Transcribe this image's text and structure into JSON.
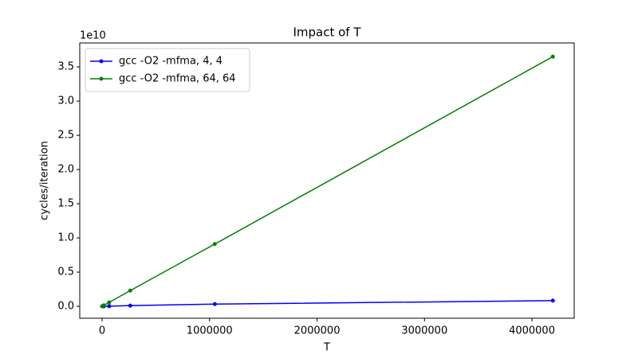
{
  "chart_data": {
    "type": "line",
    "title": "Impact of T",
    "x_label": "T",
    "y_label": "cycles/iteration",
    "y_offset_label": "1e10",
    "x": [
      1024,
      4096,
      16384,
      65536,
      262144,
      1048576,
      4194304
    ],
    "series": [
      {
        "name": "gcc -O2 -mfma, 4, 4",
        "color": "#0000ff",
        "values": [
          400000,
          1600000,
          6400000,
          25000000,
          100000000,
          320000000,
          830000000
        ]
      },
      {
        "name": "gcc -O2 -mfma, 64, 64",
        "color": "#008000",
        "values": [
          9000000,
          36000000,
          143000000,
          570000000,
          2300000000,
          9100000000,
          36500000000
        ]
      }
    ],
    "xlim": [
      -207792,
      4393000
    ],
    "ylim": [
      -1740000000,
      38500000000
    ],
    "xticks": [
      0,
      1000000,
      2000000,
      3000000,
      4000000
    ],
    "yticks": [
      {
        "value": 0,
        "label": "0.0"
      },
      {
        "value": 5000000000,
        "label": "0.5"
      },
      {
        "value": 10000000000,
        "label": "1.0"
      },
      {
        "value": 15000000000,
        "label": "1.5"
      },
      {
        "value": 20000000000,
        "label": "2.0"
      },
      {
        "value": 25000000000,
        "label": "2.5"
      },
      {
        "value": 30000000000,
        "label": "3.0"
      },
      {
        "value": 35000000000,
        "label": "3.5"
      }
    ],
    "legend": "upper left"
  }
}
